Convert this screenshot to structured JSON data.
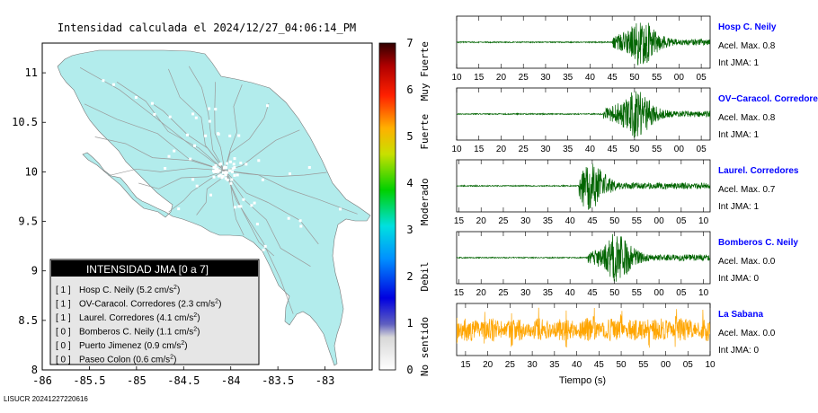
{
  "title": "Intensidad calculada el 2024/12/27_04:06:14_PM",
  "footer": "LISUCR 20241227220616",
  "colors": {
    "land": "#b2ecec",
    "roads": "#9a9a9a",
    "station_trace": "#006400",
    "last_trace": "#ffa500",
    "station_name": "#0000ff"
  },
  "map": {
    "x_ticks": [
      "-86",
      "-85.5",
      "-85",
      "-84.5",
      "-84",
      "-83.5",
      "-83"
    ],
    "y_ticks": [
      "11",
      "10.5",
      "10",
      "9.5",
      "9",
      "8.5",
      "8"
    ],
    "xlim": [
      -86,
      -82.5
    ],
    "ylim": [
      8,
      11.3
    ]
  },
  "colorbar": {
    "ticks": [
      "0",
      "1",
      "2",
      "3",
      "4",
      "5",
      "6",
      "7"
    ],
    "labels": [
      "No sentido",
      "Debil",
      "Moderado",
      "Fuerte",
      "Muy Fuerte"
    ],
    "range": [
      0,
      7
    ]
  },
  "legend": {
    "title": "INTENSIDAD JMA [0 a 7]",
    "rows": [
      {
        "code": "[ 1 ]",
        "text": "Hosp C. Neily (5.2 cm/s",
        "sup": "2",
        "end": ")"
      },
      {
        "code": "[ 1 ]",
        "text": "OV-Caracol. Corredores (2.3 cm/s",
        "sup": "2",
        "end": ")"
      },
      {
        "code": "[ 1 ]",
        "text": "Laurel. Corredores (4.1 cm/s",
        "sup": "2",
        "end": ")"
      },
      {
        "code": "[ 0 ]",
        "text": "Bomberos C. Neily (1.1 cm/s",
        "sup": "2",
        "end": ")"
      },
      {
        "code": "[ 0 ]",
        "text": "Puerto Jimenez (0.9 cm/s",
        "sup": "2",
        "end": ")"
      },
      {
        "code": "[ 0 ]",
        "text": "Paseo Colon (0.6 cm/s",
        "sup": "2",
        "end": ")"
      }
    ]
  },
  "chart_data": {
    "type": "line",
    "xlabel": "Tiempo (s)",
    "stations": [
      {
        "name": "Hosp C. Neily",
        "acel": "Acel. Max. 0.8",
        "jma": "Int JMA: 1",
        "ticks": [
          "10",
          "15",
          "20",
          "25",
          "30",
          "35",
          "40",
          "45",
          "50",
          "55",
          "00",
          "05"
        ],
        "xstart": 10,
        "onset": 45,
        "peak": 51
      },
      {
        "name": "OV−Caracol. Corredore",
        "acel": "Acel. Max. 0.8",
        "jma": "Int JMA: 1",
        "ticks": [
          "10",
          "15",
          "20",
          "25",
          "30",
          "35",
          "40",
          "45",
          "50",
          "55",
          "00",
          "05"
        ],
        "xstart": 10,
        "onset": 43,
        "peak": 50
      },
      {
        "name": "Laurel. Corredores",
        "acel": "Acel. Max. 0.7",
        "jma": "Int JMA: 1",
        "ticks": [
          "15",
          "20",
          "25",
          "30",
          "35",
          "40",
          "45",
          "50",
          "55",
          "00",
          "05",
          "10"
        ],
        "xstart": 14.5,
        "onset": 42,
        "peak": 44
      },
      {
        "name": "Bomberos C. Neily",
        "acel": "Acel. Max. 0.0",
        "jma": "Int JMA: 0",
        "ticks": [
          "15",
          "20",
          "25",
          "30",
          "35",
          "40",
          "45",
          "50",
          "55",
          "00",
          "05",
          "10"
        ],
        "xstart": 14.5,
        "onset": 44,
        "peak": 50
      },
      {
        "name": "La Sabana",
        "acel": "Acel. Max. 0.0",
        "jma": "Int JMA: 0",
        "ticks": [
          "15",
          "20",
          "25",
          "30",
          "35",
          "40",
          "45",
          "50",
          "55",
          "00",
          "05",
          "10"
        ],
        "xstart": 13,
        "onset": null,
        "peak": null
      }
    ]
  }
}
